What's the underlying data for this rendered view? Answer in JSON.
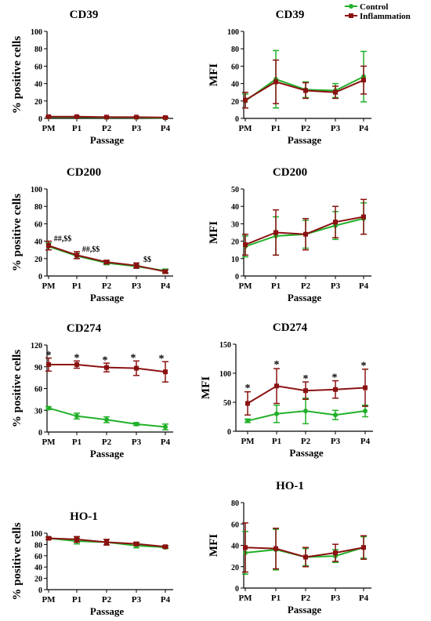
{
  "legend": {
    "placement": "top-right",
    "entries": [
      {
        "label": "Control",
        "color": "#22b02a"
      },
      {
        "label": "Inflammation",
        "color": "#8b1212"
      }
    ]
  },
  "colors": {
    "control": "#22b02a",
    "inflammation": "#8b1212",
    "axis": "#000000"
  },
  "chart_data": [
    {
      "id": "cd39-pct",
      "type": "line",
      "title": "CD39",
      "xlabel": "Passage",
      "ylabel": "% positive cells",
      "categories": [
        "PM",
        "P1",
        "P2",
        "P3",
        "P4"
      ],
      "ylim": [
        0,
        100
      ],
      "yticks": [
        0,
        20,
        40,
        60,
        80,
        100
      ],
      "series": [
        {
          "name": "Control",
          "values": [
            1.5,
            1.5,
            1,
            1,
            0.5
          ],
          "err": [
            0.5,
            0.5,
            0.5,
            0.5,
            0.5
          ]
        },
        {
          "name": "Inflammation",
          "values": [
            2,
            2,
            1.5,
            1.5,
            1
          ],
          "err": [
            0.5,
            0.5,
            0.5,
            0.5,
            0.5
          ]
        }
      ],
      "annotations": []
    },
    {
      "id": "cd39-mfi",
      "type": "line",
      "title": "CD39",
      "xlabel": "Passage",
      "ylabel": "MFI",
      "categories": [
        "PM",
        "P1",
        "P2",
        "P3",
        "P4"
      ],
      "ylim": [
        0,
        100
      ],
      "yticks": [
        0,
        20,
        40,
        60,
        80,
        100
      ],
      "series": [
        {
          "name": "Control",
          "values": [
            20,
            45,
            33,
            32,
            48
          ],
          "err": [
            8,
            33,
            9,
            8,
            29
          ]
        },
        {
          "name": "Inflammation",
          "values": [
            21,
            42,
            32,
            30,
            44
          ],
          "err": [
            9,
            25,
            9,
            7,
            16
          ]
        }
      ],
      "annotations": []
    },
    {
      "id": "cd200-pct",
      "type": "line",
      "title": "CD200",
      "xlabel": "Passage",
      "ylabel": "% positive cells",
      "categories": [
        "PM",
        "P1",
        "P2",
        "P3",
        "P4"
      ],
      "ylim": [
        0,
        100
      ],
      "yticks": [
        0,
        20,
        40,
        60,
        80,
        100
      ],
      "series": [
        {
          "name": "Control",
          "values": [
            34,
            23,
            15,
            11,
            6
          ],
          "err": [
            4,
            3,
            2,
            2,
            2
          ]
        },
        {
          "name": "Inflammation",
          "values": [
            35,
            24,
            16,
            12,
            5
          ],
          "err": [
            5,
            4,
            2,
            3,
            2
          ]
        }
      ],
      "annotations": [
        {
          "text": "##,$$",
          "x": 0.5,
          "y": 40
        },
        {
          "text": "##,$$",
          "x": 1.5,
          "y": 28
        },
        {
          "text": "$$",
          "x": 3.5,
          "y": 16
        }
      ]
    },
    {
      "id": "cd200-mfi",
      "type": "line",
      "title": "CD200",
      "xlabel": "Passage",
      "ylabel": "MFI",
      "categories": [
        "PM",
        "P1",
        "P2",
        "P3",
        "P4"
      ],
      "ylim": [
        0,
        50
      ],
      "yticks": [
        0,
        10,
        20,
        30,
        40,
        50
      ],
      "series": [
        {
          "name": "Control",
          "values": [
            17,
            23,
            24,
            29,
            33
          ],
          "err": [
            6,
            11,
            8,
            8,
            9
          ]
        },
        {
          "name": "Inflammation",
          "values": [
            18,
            25,
            24,
            31,
            34
          ],
          "err": [
            6,
            13,
            9,
            9,
            10
          ]
        }
      ],
      "annotations": []
    },
    {
      "id": "cd274-pct",
      "type": "line",
      "title": "CD274",
      "xlabel": "Passage",
      "ylabel": "% positive cells",
      "categories": [
        "PM",
        "P1",
        "P2",
        "P3",
        "P4"
      ],
      "ylim": [
        0,
        120
      ],
      "yticks": [
        0,
        30,
        60,
        90,
        120
      ],
      "series": [
        {
          "name": "Control",
          "values": [
            33,
            22,
            17,
            11,
            7
          ],
          "err": [
            2,
            4,
            4,
            2,
            4
          ]
        },
        {
          "name": "Inflammation",
          "values": [
            93,
            93,
            89,
            88,
            83
          ],
          "err": [
            9,
            5,
            6,
            10,
            14
          ]
        }
      ],
      "annotations": [
        {
          "text": "*",
          "x": 0,
          "y": 107
        },
        {
          "text": "*",
          "x": 1,
          "y": 103
        },
        {
          "text": "*",
          "x": 2,
          "y": 100
        },
        {
          "text": "*",
          "x": 3,
          "y": 103
        },
        {
          "text": "*",
          "x": 4,
          "y": 102
        }
      ]
    },
    {
      "id": "cd274-mfi",
      "type": "line",
      "title": "CD274",
      "xlabel": "Passage",
      "ylabel": "MFI",
      "categories": [
        "PM",
        "P1",
        "P2",
        "P3",
        "P4"
      ],
      "ylim": [
        0,
        150
      ],
      "yticks": [
        0,
        50,
        100,
        150
      ],
      "series": [
        {
          "name": "Control",
          "values": [
            18,
            30,
            35,
            28,
            35
          ],
          "err": [
            3,
            15,
            22,
            8,
            10
          ]
        },
        {
          "name": "Inflammation",
          "values": [
            48,
            78,
            70,
            72,
            75
          ],
          "err": [
            20,
            30,
            15,
            15,
            32
          ]
        }
      ],
      "annotations": [
        {
          "text": "*",
          "x": 0,
          "y": 76
        },
        {
          "text": "*",
          "x": 1,
          "y": 116
        },
        {
          "text": "*",
          "x": 2,
          "y": 92
        },
        {
          "text": "*",
          "x": 3,
          "y": 94
        },
        {
          "text": "*",
          "x": 4,
          "y": 114
        }
      ]
    },
    {
      "id": "ho1-pct",
      "type": "line",
      "title": "HO-1",
      "xlabel": "Passage",
      "ylabel": "% positive cells",
      "categories": [
        "PM",
        "P1",
        "P2",
        "P3",
        "P4"
      ],
      "ylim": [
        0,
        100
      ],
      "yticks": [
        0,
        20,
        40,
        60,
        80,
        100
      ],
      "series": [
        {
          "name": "Control",
          "values": [
            91,
            86,
            84,
            78,
            75
          ],
          "err": [
            2,
            5,
            5,
            4,
            2
          ]
        },
        {
          "name": "Inflammation",
          "values": [
            91,
            89,
            84,
            81,
            76
          ],
          "err": [
            2,
            5,
            5,
            3,
            2
          ]
        }
      ],
      "annotations": []
    },
    {
      "id": "ho1-mfi",
      "type": "line",
      "title": "HO-1",
      "xlabel": "Passage",
      "ylabel": "MFI",
      "categories": [
        "PM",
        "P1",
        "P2",
        "P3",
        "P4"
      ],
      "ylim": [
        0,
        80
      ],
      "yticks": [
        0,
        20,
        40,
        60,
        80
      ],
      "series": [
        {
          "name": "Control",
          "values": [
            33,
            36,
            29,
            30,
            38
          ],
          "err": [
            20,
            19,
            8,
            6,
            10
          ]
        },
        {
          "name": "Inflammation",
          "values": [
            38,
            37,
            29,
            33,
            38
          ],
          "err": [
            23,
            19,
            9,
            8,
            11
          ]
        }
      ],
      "annotations": []
    }
  ]
}
